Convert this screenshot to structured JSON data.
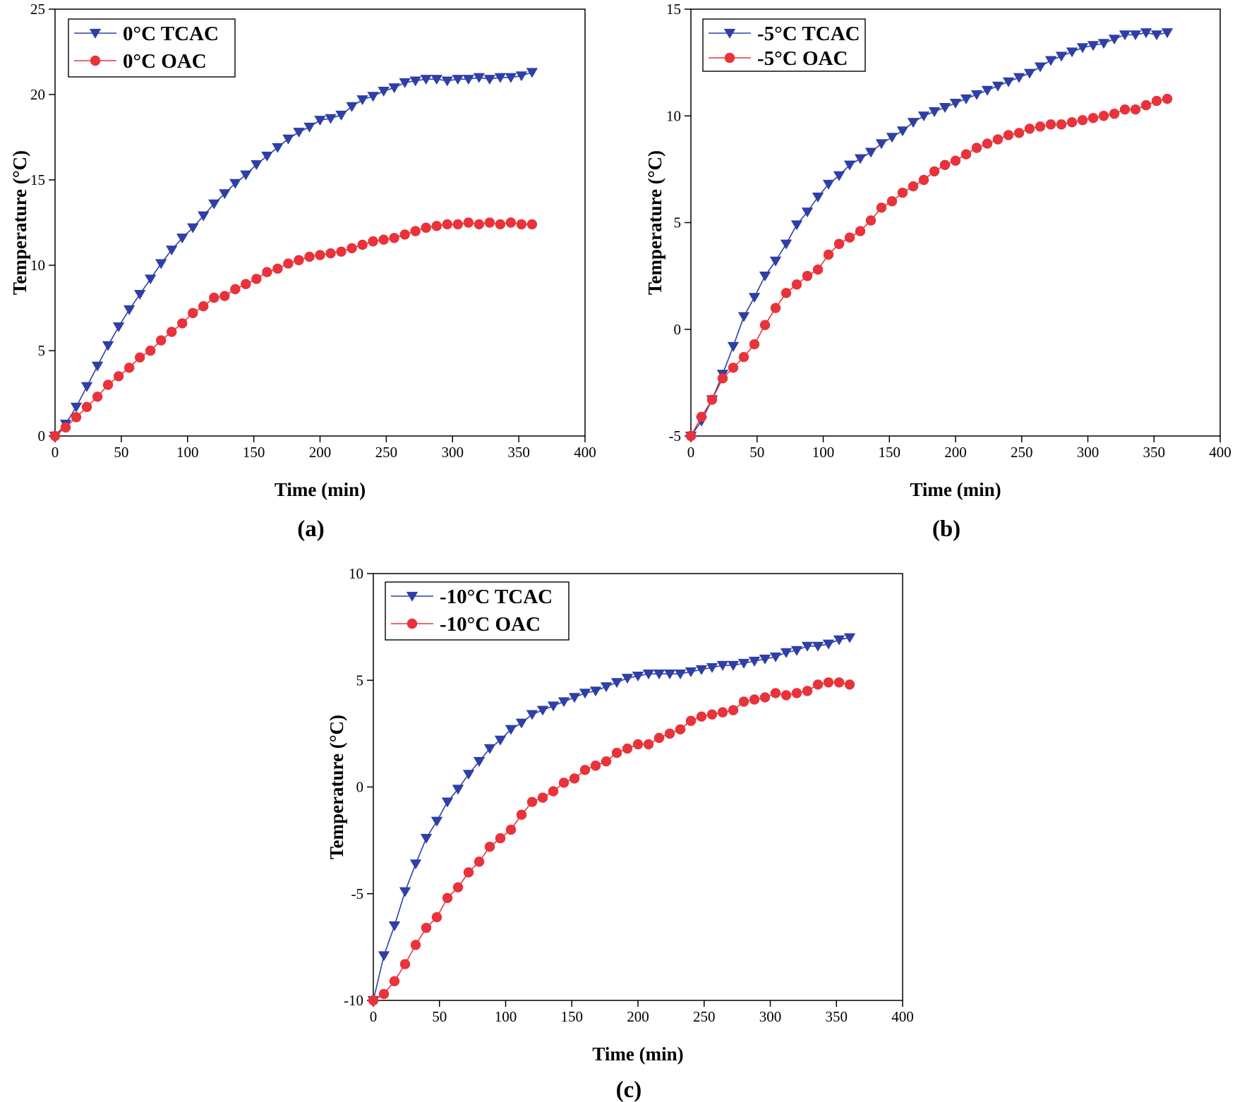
{
  "colors": {
    "tcac": "#2e3fa6",
    "oac": "#e8333b",
    "axis": "#000000"
  },
  "chart_data": [
    {
      "type": "line",
      "panel_label": "(a)",
      "xlabel": "Time (min)",
      "ylabel": "Temperature (°C)",
      "xlim": [
        0,
        400
      ],
      "ylim": [
        0,
        25
      ],
      "xticks": [
        0,
        50,
        100,
        150,
        200,
        250,
        300,
        350,
        400
      ],
      "yticks": [
        0,
        5,
        10,
        15,
        20,
        25
      ],
      "grid": false,
      "legend_position": "top-left",
      "series": [
        {
          "name": "0°C TCAC",
          "marker": "triangle-down",
          "color": "#2e3fa6",
          "x": [
            0,
            8,
            16,
            24,
            32,
            40,
            48,
            56,
            64,
            72,
            80,
            88,
            96,
            104,
            112,
            120,
            128,
            136,
            144,
            152,
            160,
            168,
            176,
            184,
            192,
            200,
            208,
            216,
            224,
            232,
            240,
            248,
            256,
            264,
            272,
            280,
            288,
            296,
            304,
            312,
            320,
            328,
            336,
            344,
            352,
            360
          ],
          "y": [
            0,
            0.7,
            1.7,
            2.9,
            4.1,
            5.3,
            6.4,
            7.4,
            8.3,
            9.2,
            10.1,
            10.9,
            11.6,
            12.2,
            12.9,
            13.6,
            14.2,
            14.8,
            15.3,
            15.9,
            16.4,
            16.9,
            17.4,
            17.8,
            18.1,
            18.5,
            18.6,
            18.8,
            19.3,
            19.7,
            19.9,
            20.2,
            20.4,
            20.7,
            20.8,
            20.9,
            20.9,
            20.8,
            20.9,
            20.9,
            21.0,
            20.9,
            21.0,
            21.0,
            21.1,
            21.3
          ]
        },
        {
          "name": "0°C OAC",
          "marker": "circle",
          "color": "#e8333b",
          "x": [
            0,
            8,
            16,
            24,
            32,
            40,
            48,
            56,
            64,
            72,
            80,
            88,
            96,
            104,
            112,
            120,
            128,
            136,
            144,
            152,
            160,
            168,
            176,
            184,
            192,
            200,
            208,
            216,
            224,
            232,
            240,
            248,
            256,
            264,
            272,
            280,
            288,
            296,
            304,
            312,
            320,
            328,
            336,
            344,
            352,
            360
          ],
          "y": [
            0,
            0.5,
            1.1,
            1.7,
            2.3,
            3.0,
            3.5,
            4.0,
            4.6,
            5.0,
            5.6,
            6.1,
            6.6,
            7.2,
            7.6,
            8.1,
            8.2,
            8.6,
            8.9,
            9.2,
            9.6,
            9.8,
            10.1,
            10.3,
            10.5,
            10.6,
            10.7,
            10.8,
            11.0,
            11.2,
            11.4,
            11.5,
            11.6,
            11.8,
            12.0,
            12.2,
            12.3,
            12.4,
            12.4,
            12.5,
            12.4,
            12.5,
            12.4,
            12.5,
            12.4,
            12.4
          ]
        }
      ]
    },
    {
      "type": "line",
      "panel_label": "(b)",
      "xlabel": "Time (min)",
      "ylabel": "Temperature (°C)",
      "xlim": [
        0,
        400
      ],
      "ylim": [
        -5,
        15
      ],
      "xticks": [
        0,
        50,
        100,
        150,
        200,
        250,
        300,
        350,
        400
      ],
      "yticks": [
        -5,
        0,
        5,
        10,
        15
      ],
      "grid": false,
      "legend_position": "top-left",
      "series": [
        {
          "name": "-5°C TCAC",
          "marker": "triangle-down",
          "color": "#2e3fa6",
          "x": [
            0,
            8,
            16,
            24,
            32,
            40,
            48,
            56,
            64,
            72,
            80,
            88,
            96,
            104,
            112,
            120,
            128,
            136,
            144,
            152,
            160,
            168,
            176,
            184,
            192,
            200,
            208,
            216,
            224,
            232,
            240,
            248,
            256,
            264,
            272,
            280,
            288,
            296,
            304,
            312,
            320,
            328,
            336,
            344,
            352,
            360
          ],
          "y": [
            -5,
            -4.3,
            -3.3,
            -2.1,
            -0.8,
            0.6,
            1.5,
            2.5,
            3.2,
            4.0,
            4.9,
            5.5,
            6.2,
            6.8,
            7.2,
            7.7,
            8.0,
            8.3,
            8.7,
            9.0,
            9.3,
            9.7,
            10.0,
            10.2,
            10.4,
            10.6,
            10.8,
            11.0,
            11.2,
            11.4,
            11.6,
            11.8,
            12.0,
            12.3,
            12.6,
            12.8,
            13.0,
            13.2,
            13.3,
            13.4,
            13.6,
            13.8,
            13.8,
            13.9,
            13.8,
            13.9
          ]
        },
        {
          "name": "-5°C OAC",
          "marker": "circle",
          "color": "#e8333b",
          "x": [
            0,
            8,
            16,
            24,
            32,
            40,
            48,
            56,
            64,
            72,
            80,
            88,
            96,
            104,
            112,
            120,
            128,
            136,
            144,
            152,
            160,
            168,
            176,
            184,
            192,
            200,
            208,
            216,
            224,
            232,
            240,
            248,
            256,
            264,
            272,
            280,
            288,
            296,
            304,
            312,
            320,
            328,
            336,
            344,
            352,
            360
          ],
          "y": [
            -5,
            -4.1,
            -3.3,
            -2.3,
            -1.8,
            -1.3,
            -0.7,
            0.2,
            1.0,
            1.7,
            2.1,
            2.5,
            2.8,
            3.5,
            4.0,
            4.3,
            4.6,
            5.1,
            5.7,
            6.0,
            6.4,
            6.7,
            7.0,
            7.4,
            7.7,
            7.9,
            8.2,
            8.5,
            8.7,
            8.9,
            9.1,
            9.2,
            9.4,
            9.5,
            9.6,
            9.6,
            9.7,
            9.8,
            9.9,
            10.0,
            10.1,
            10.3,
            10.3,
            10.5,
            10.7,
            10.8
          ]
        }
      ]
    },
    {
      "type": "line",
      "panel_label": "(c)",
      "xlabel": "Time (min)",
      "ylabel": "Temperature (°C)",
      "xlim": [
        0,
        400
      ],
      "ylim": [
        -10,
        10
      ],
      "xticks": [
        0,
        50,
        100,
        150,
        200,
        250,
        300,
        350,
        400
      ],
      "yticks": [
        -10,
        -5,
        0,
        5,
        10
      ],
      "grid": false,
      "legend_position": "top-left",
      "series": [
        {
          "name": "-10°C TCAC",
          "marker": "triangle-down",
          "color": "#2e3fa6",
          "x": [
            0,
            8,
            16,
            24,
            32,
            40,
            48,
            56,
            64,
            72,
            80,
            88,
            96,
            104,
            112,
            120,
            128,
            136,
            144,
            152,
            160,
            168,
            176,
            184,
            192,
            200,
            208,
            216,
            224,
            232,
            240,
            248,
            256,
            264,
            272,
            280,
            288,
            296,
            304,
            312,
            320,
            328,
            336,
            344,
            352,
            360
          ],
          "y": [
            -10,
            -7.9,
            -6.5,
            -4.9,
            -3.6,
            -2.4,
            -1.6,
            -0.7,
            -0.1,
            0.6,
            1.2,
            1.8,
            2.2,
            2.7,
            3.0,
            3.4,
            3.6,
            3.8,
            4.0,
            4.2,
            4.4,
            4.5,
            4.7,
            4.9,
            5.1,
            5.2,
            5.3,
            5.3,
            5.3,
            5.3,
            5.4,
            5.5,
            5.6,
            5.7,
            5.7,
            5.8,
            5.9,
            6.0,
            6.1,
            6.3,
            6.4,
            6.6,
            6.6,
            6.7,
            6.9,
            7.0
          ]
        },
        {
          "name": "-10°C OAC",
          "marker": "circle",
          "color": "#e8333b",
          "x": [
            0,
            8,
            16,
            24,
            32,
            40,
            48,
            56,
            64,
            72,
            80,
            88,
            96,
            104,
            112,
            120,
            128,
            136,
            144,
            152,
            160,
            168,
            176,
            184,
            192,
            200,
            208,
            216,
            224,
            232,
            240,
            248,
            256,
            264,
            272,
            280,
            288,
            296,
            304,
            312,
            320,
            328,
            336,
            344,
            352,
            360
          ],
          "y": [
            -10,
            -9.7,
            -9.1,
            -8.3,
            -7.4,
            -6.6,
            -6.1,
            -5.2,
            -4.7,
            -4.0,
            -3.5,
            -2.8,
            -2.4,
            -2.0,
            -1.3,
            -0.7,
            -0.5,
            -0.2,
            0.2,
            0.4,
            0.8,
            1.0,
            1.2,
            1.6,
            1.8,
            2.0,
            2.0,
            2.3,
            2.5,
            2.7,
            3.1,
            3.3,
            3.4,
            3.5,
            3.6,
            4.0,
            4.1,
            4.2,
            4.4,
            4.3,
            4.4,
            4.5,
            4.8,
            4.9,
            4.9,
            4.8
          ]
        }
      ]
    }
  ]
}
